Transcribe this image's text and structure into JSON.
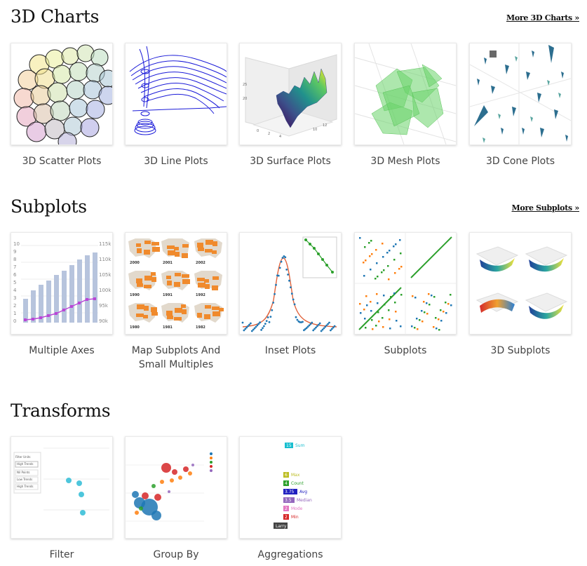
{
  "sections": [
    {
      "title": "3D Charts",
      "more": "More 3D Charts »"
    },
    {
      "title": "Subplots",
      "more": "More Subplots »"
    },
    {
      "title": "Transforms",
      "more": ""
    }
  ],
  "cards": {
    "scatter3d": "3D Scatter Plots",
    "line3d": "3D Line Plots",
    "surface3d": "3D Surface Plots",
    "mesh3d": "3D Mesh Plots",
    "cone3d": "3D Cone Plots",
    "multiaxes": "Multiple Axes",
    "mapsub": "Map Subplots And Small Multiples",
    "inset": "Inset Plots",
    "subplots": "Subplots",
    "subplots3d": "3D Subplots",
    "filter": "Filter",
    "groupby": "Group By",
    "aggregations": "Aggregations"
  },
  "thumb_text": {
    "multiaxes_left_ticks": [
      "10",
      "9",
      "8",
      "7",
      "6",
      "5",
      "4",
      "3",
      "2",
      "1",
      "0"
    ],
    "multiaxes_right_ticks": [
      "115k",
      "110k",
      "105k",
      "100k",
      "95k",
      "90k"
    ],
    "map_years": [
      "2000",
      "2001",
      "2002",
      "1990",
      "1991",
      "1992",
      "1980",
      "1981",
      "1982"
    ],
    "agg_labels": [
      {
        "num": "15",
        "text": "Sum",
        "color": "#17becf"
      },
      {
        "num": "6",
        "text": "Max",
        "color": "#bcbd22"
      },
      {
        "num": "4",
        "text": "Count",
        "color": "#2ca02c"
      },
      {
        "num": "3.75",
        "text": "Avg",
        "color": "#1f1fbf"
      },
      {
        "num": "3.5",
        "text": "Median",
        "color": "#9467bd"
      },
      {
        "num": "2",
        "text": "Mode",
        "color": "#e377c2"
      },
      {
        "num": "2",
        "text": "Min",
        "color": "#d62728"
      }
    ],
    "agg_name": "Larry",
    "filter_panel": [
      "Filter Units",
      "High Trends",
      "Nil Points",
      "Low Trends",
      "High Trends"
    ]
  },
  "colors": {
    "heading": "#111111",
    "label": "#444444",
    "plotly_blue": "#1f77b4",
    "plotly_orange": "#ff7f0e",
    "plotly_green": "#2ca02c",
    "plotly_red": "#d62728"
  }
}
